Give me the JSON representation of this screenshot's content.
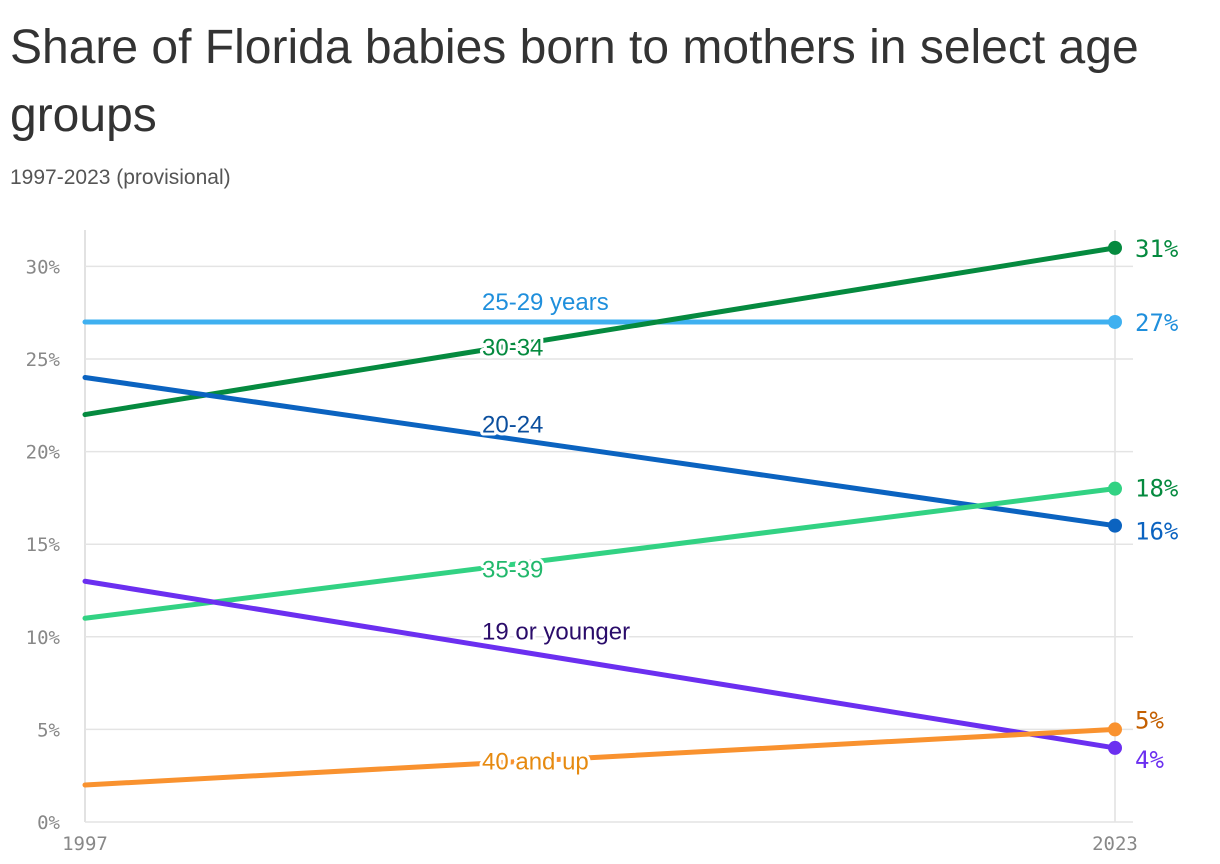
{
  "chart_data": {
    "type": "line",
    "title": "Share of Florida babies born to mothers in select age groups",
    "subtitle": "1997-2023 (provisional)",
    "x": [
      "1997",
      "2023"
    ],
    "y_ticks": [
      "0%",
      "5%",
      "10%",
      "15%",
      "20%",
      "25%",
      "30%"
    ],
    "ylim": [
      0,
      31
    ],
    "grid": true,
    "series": [
      {
        "name": "25-29 years",
        "values": [
          27,
          27
        ],
        "color": "#3fb0f0",
        "label_color": "#1f8fdc",
        "end_label": "27%",
        "end_label_color": "#1f8fdc"
      },
      {
        "name": "30-34",
        "values": [
          22,
          31
        ],
        "color": "#058a3f",
        "label_color": "#058a3f",
        "end_label": "31%",
        "end_label_color": "#058a3f"
      },
      {
        "name": "20-24",
        "values": [
          24,
          16
        ],
        "color": "#0b63c0",
        "label_color": "#0b4f9e",
        "end_label": "16%",
        "end_label_color": "#0b63c0"
      },
      {
        "name": "35-39",
        "values": [
          11,
          18
        ],
        "color": "#32d283",
        "label_color": "#22b86c",
        "end_label": "18%",
        "end_label_color": "#058a3f"
      },
      {
        "name": "19 or younger",
        "values": [
          13,
          4
        ],
        "color": "#6b2ff0",
        "label_color": "#2a0c6a",
        "end_label": "4%",
        "end_label_color": "#6b2ff0"
      },
      {
        "name": "40 and up",
        "values": [
          2,
          5
        ],
        "color": "#f9922f",
        "label_color": "#e68a10",
        "end_label": "5%",
        "end_label_color": "#c45f00"
      }
    ]
  }
}
